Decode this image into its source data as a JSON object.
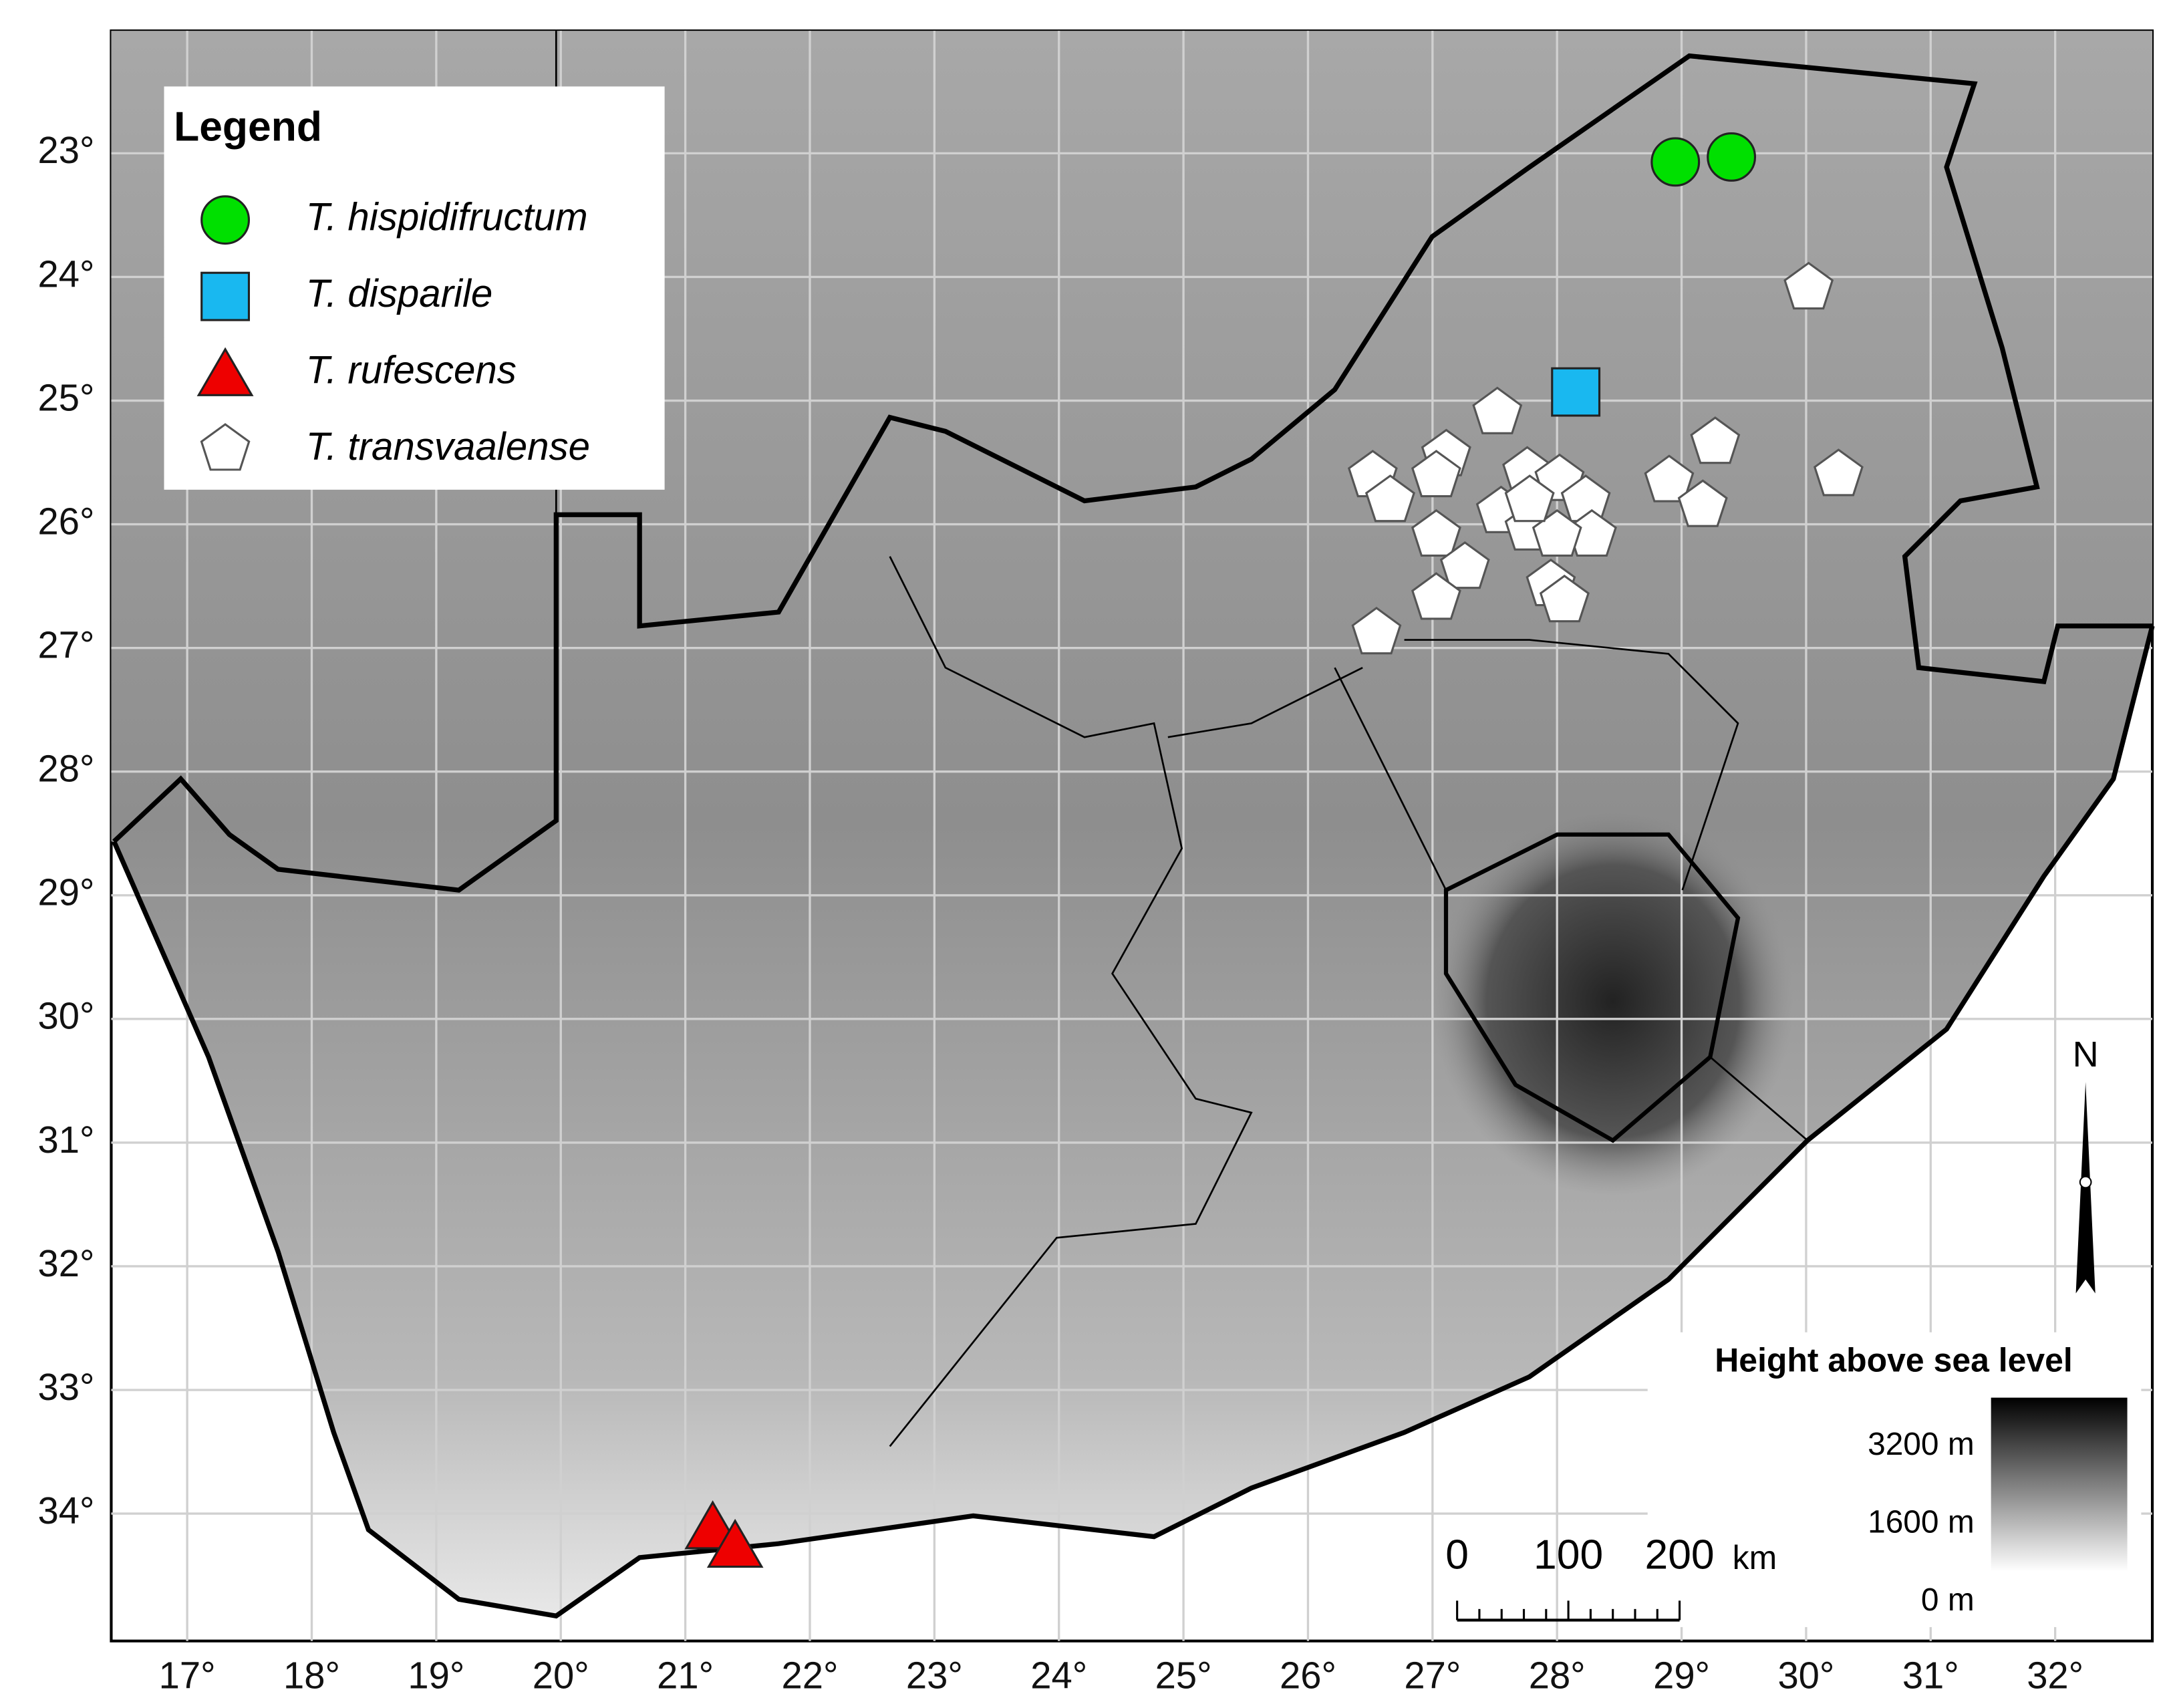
{
  "chart_data": {
    "type": "map",
    "xlim": [
      16.39,
      32.78
    ],
    "ylim": [
      35.03,
      22.01
    ],
    "grid": true,
    "xticks": [
      {
        "value": 17,
        "label": "17°"
      },
      {
        "value": 18,
        "label": "18°"
      },
      {
        "value": 19,
        "label": "19°"
      },
      {
        "value": 20,
        "label": "20°"
      },
      {
        "value": 21,
        "label": "21°"
      },
      {
        "value": 22,
        "label": "22°"
      },
      {
        "value": 23,
        "label": "23°"
      },
      {
        "value": 24,
        "label": "24°"
      },
      {
        "value": 25,
        "label": "25°"
      },
      {
        "value": 26,
        "label": "26°"
      },
      {
        "value": 27,
        "label": "27°"
      },
      {
        "value": 28,
        "label": "28°"
      },
      {
        "value": 29,
        "label": "29°"
      },
      {
        "value": 30,
        "label": "30°"
      },
      {
        "value": 31,
        "label": "31°"
      },
      {
        "value": 32,
        "label": "32°"
      }
    ],
    "yticks": [
      {
        "value": 23,
        "label": "23°"
      },
      {
        "value": 24,
        "label": "24°"
      },
      {
        "value": 25,
        "label": "25°"
      },
      {
        "value": 26,
        "label": "26°"
      },
      {
        "value": 27,
        "label": "27°"
      },
      {
        "value": 28,
        "label": "28°"
      },
      {
        "value": 29,
        "label": "29°"
      },
      {
        "value": 30,
        "label": "30°"
      },
      {
        "value": 31,
        "label": "31°"
      },
      {
        "value": 32,
        "label": "32°"
      },
      {
        "value": 33,
        "label": "33°"
      },
      {
        "value": 34,
        "label": "34°"
      }
    ],
    "legend_title": "Legend",
    "series": [
      {
        "name": "T. hispidifructum",
        "marker": "circle",
        "color": "#00e000",
        "x": [
          28.95,
          29.4
        ],
        "y": [
          23.07,
          23.03
        ]
      },
      {
        "name": "T. disparile",
        "marker": "square",
        "color": "#19b8f0",
        "x": [
          28.15
        ],
        "y": [
          24.93
        ]
      },
      {
        "name": "T. rufescens",
        "marker": "triangle",
        "color": "#ee0000",
        "x": [
          21.22,
          21.4
        ],
        "y": [
          34.1,
          34.25
        ]
      },
      {
        "name": "T. transvaalense",
        "marker": "pentagon",
        "color": "#ffffff",
        "x": [
          30.02,
          27.52,
          26.52,
          26.66,
          27.11,
          27.03,
          27.03,
          27.26,
          27.03,
          26.55,
          29.27,
          28.9,
          29.17,
          30.26,
          27.76,
          27.55,
          27.78,
          28.02,
          28.23,
          28.28,
          28.0,
          27.95,
          28.06,
          27.78
        ],
        "y": [
          24.09,
          25.1,
          25.61,
          25.81,
          25.44,
          25.61,
          26.09,
          26.35,
          26.6,
          26.88,
          25.34,
          25.65,
          25.85,
          25.6,
          25.58,
          25.9,
          26.04,
          25.64,
          25.81,
          26.09,
          26.09,
          26.49,
          26.62,
          25.81
        ]
      }
    ],
    "north_label": "N",
    "scale_bar": {
      "ticks": [
        0,
        100,
        200
      ],
      "unit": "km"
    },
    "elevation_legend": {
      "title": "Height above sea level",
      "labels": [
        "3200 m",
        "1600 m",
        "0 m"
      ]
    }
  }
}
